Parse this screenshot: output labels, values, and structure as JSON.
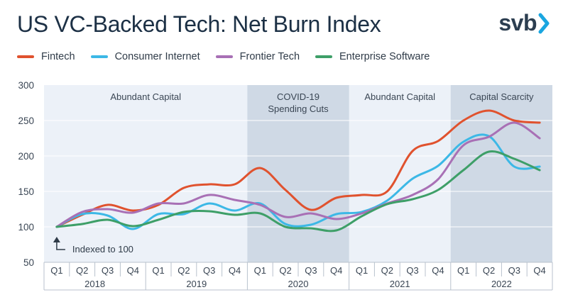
{
  "header": {
    "title": "US VC-Backed Tech: Net Burn Index"
  },
  "logo": {
    "text": "svb",
    "icon": "chevron-right-icon",
    "color": "#2c3e50",
    "accent": "#1aa6e0"
  },
  "chart_data": {
    "type": "line",
    "title": "US VC-Backed Tech: Net Burn Index",
    "xlabel": "",
    "ylabel": "",
    "ylim": [
      50,
      300
    ],
    "yticks": [
      50,
      100,
      150,
      200,
      250,
      300
    ],
    "grid": true,
    "legend_position": "top-left",
    "quarters": [
      "Q1",
      "Q2",
      "Q3",
      "Q4",
      "Q1",
      "Q2",
      "Q3",
      "Q4",
      "Q1",
      "Q2",
      "Q3",
      "Q4",
      "Q1",
      "Q2",
      "Q3",
      "Q4",
      "Q1",
      "Q2",
      "Q3",
      "Q4"
    ],
    "years": [
      "2018",
      "2019",
      "2020",
      "2021",
      "2022"
    ],
    "series": [
      {
        "name": "Fintech",
        "color": "#e0522e",
        "values": [
          100,
          117,
          131,
          123,
          131,
          155,
          160,
          160,
          183,
          152,
          124,
          141,
          145,
          150,
          207,
          221,
          250,
          264,
          250,
          247
        ]
      },
      {
        "name": "Consumer Internet",
        "color": "#3cb8e6",
        "values": [
          100,
          118,
          116,
          97,
          118,
          118,
          133,
          123,
          133,
          104,
          103,
          118,
          121,
          137,
          168,
          186,
          220,
          228,
          185,
          185
        ]
      },
      {
        "name": "Frontier Tech",
        "color": "#a870b5",
        "values": [
          100,
          121,
          125,
          120,
          133,
          133,
          145,
          138,
          131,
          114,
          119,
          111,
          119,
          133,
          145,
          167,
          215,
          227,
          247,
          225
        ]
      },
      {
        "name": "Enterprise Software",
        "color": "#3e9f68",
        "values": [
          100,
          104,
          110,
          101,
          110,
          121,
          122,
          117,
          119,
          100,
          98,
          95,
          115,
          132,
          139,
          152,
          180,
          206,
          196,
          180
        ]
      }
    ],
    "regions": [
      {
        "label": "Abundant Capital",
        "start": 0,
        "end": 8,
        "shaded": false
      },
      {
        "label": "COVID-19 Spending Cuts",
        "lines": [
          "COVID-19",
          "Spending Cuts"
        ],
        "start": 8,
        "end": 12,
        "shaded": true
      },
      {
        "label": "Abundant Capital",
        "start": 12,
        "end": 16,
        "shaded": false
      },
      {
        "label": "Capital Scarcity",
        "start": 16,
        "end": 20,
        "shaded": true
      }
    ],
    "annotation": {
      "text": "Indexed to 100",
      "index": 0,
      "value": 100
    }
  },
  "colors": {
    "plot_bg": "#ecf1f8",
    "shade": "#cfd9e5",
    "grid": "#ffffff",
    "axis_text": "#3a4654"
  }
}
